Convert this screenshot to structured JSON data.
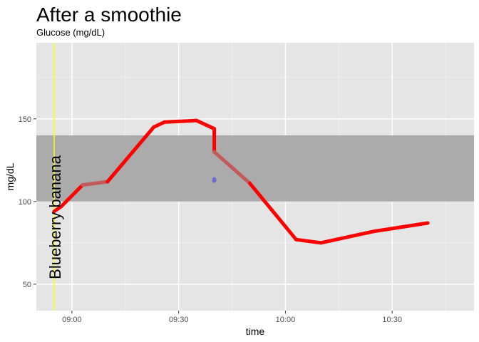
{
  "chart_data": {
    "type": "line",
    "title": "After a smoothie",
    "subtitle": "Glucose (mg/dL)",
    "xlabel": "time",
    "ylabel": "mg/dL",
    "x_range": [
      "08:50",
      "10:53"
    ],
    "ylim": [
      34,
      196
    ],
    "x_ticks": [
      "09:00",
      "09:30",
      "10:00",
      "10:30"
    ],
    "y_ticks": [
      50,
      100,
      150
    ],
    "grid": true,
    "target_band": {
      "ymin": 100,
      "ymax": 140,
      "color": "#ababab"
    },
    "annotation": {
      "label": "Blueberry banana",
      "x": "08:55",
      "line_color": "#ffff00"
    },
    "series": [
      {
        "color": "#ff0000",
        "x": [
          "08:55",
          "08:57",
          "09:03",
          "09:10",
          "09:23",
          "09:26",
          "09:35",
          "09:40",
          "09:40",
          "09:50",
          "10:03",
          "10:10",
          "10:25",
          "10:40"
        ],
        "y": [
          94,
          97,
          110,
          112,
          145,
          148,
          149,
          144,
          130,
          111,
          77,
          75,
          82,
          87
        ]
      }
    ],
    "points": [
      {
        "x": "09:40",
        "y": 113,
        "color": "#6a6ad0"
      }
    ]
  }
}
